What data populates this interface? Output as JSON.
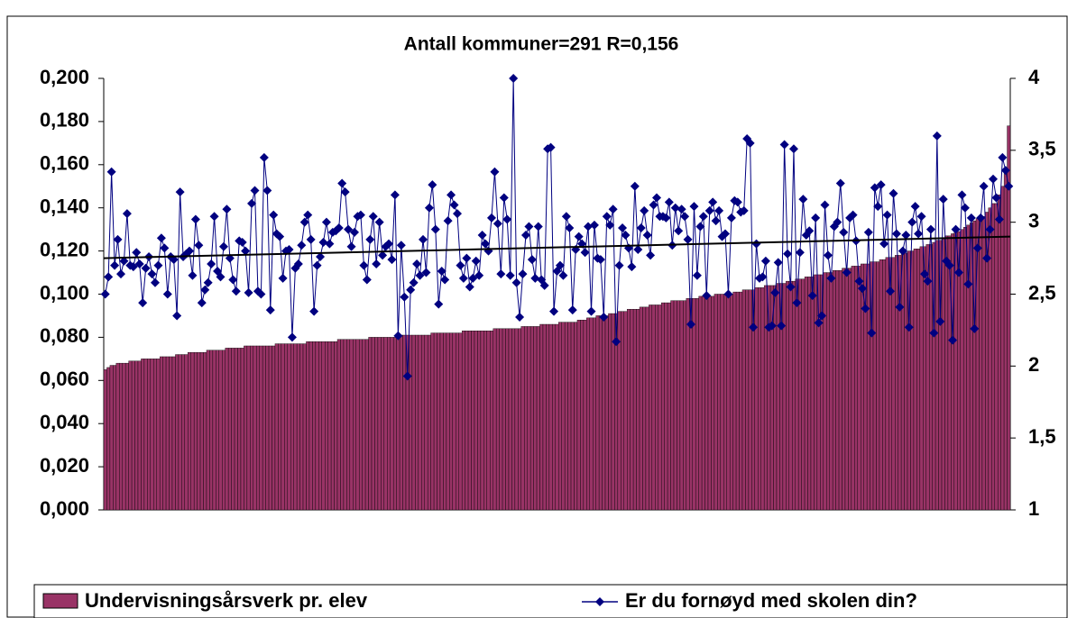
{
  "chart_data": {
    "type": "bar-line",
    "subtitle": "Antall kommuner=291   R=0,156",
    "series": [
      {
        "name": "Undervisningsårsverk pr. elev",
        "color": "#993366",
        "type": "bar",
        "values": [
          0.065,
          0.066,
          0.067,
          0.067,
          0.068,
          0.068,
          0.068,
          0.068,
          0.069,
          0.069,
          0.069,
          0.069,
          0.07,
          0.07,
          0.07,
          0.07,
          0.07,
          0.07,
          0.071,
          0.071,
          0.071,
          0.071,
          0.071,
          0.072,
          0.072,
          0.072,
          0.072,
          0.073,
          0.073,
          0.073,
          0.073,
          0.073,
          0.073,
          0.074,
          0.074,
          0.074,
          0.074,
          0.074,
          0.074,
          0.075,
          0.075,
          0.075,
          0.075,
          0.075,
          0.075,
          0.076,
          0.076,
          0.076,
          0.076,
          0.076,
          0.076,
          0.076,
          0.076,
          0.076,
          0.076,
          0.077,
          0.077,
          0.077,
          0.077,
          0.077,
          0.077,
          0.077,
          0.077,
          0.077,
          0.077,
          0.078,
          0.078,
          0.078,
          0.078,
          0.078,
          0.078,
          0.078,
          0.078,
          0.078,
          0.078,
          0.079,
          0.079,
          0.079,
          0.079,
          0.079,
          0.079,
          0.079,
          0.079,
          0.079,
          0.079,
          0.08,
          0.08,
          0.08,
          0.08,
          0.08,
          0.08,
          0.08,
          0.08,
          0.08,
          0.08,
          0.081,
          0.081,
          0.081,
          0.081,
          0.081,
          0.081,
          0.081,
          0.081,
          0.081,
          0.081,
          0.082,
          0.082,
          0.082,
          0.082,
          0.082,
          0.082,
          0.082,
          0.082,
          0.082,
          0.082,
          0.083,
          0.083,
          0.083,
          0.083,
          0.083,
          0.083,
          0.083,
          0.083,
          0.083,
          0.083,
          0.084,
          0.084,
          0.084,
          0.084,
          0.084,
          0.084,
          0.084,
          0.084,
          0.084,
          0.085,
          0.085,
          0.085,
          0.085,
          0.085,
          0.085,
          0.086,
          0.086,
          0.086,
          0.086,
          0.086,
          0.086,
          0.087,
          0.087,
          0.087,
          0.087,
          0.087,
          0.087,
          0.088,
          0.088,
          0.088,
          0.089,
          0.089,
          0.089,
          0.09,
          0.09,
          0.09,
          0.09,
          0.091,
          0.091,
          0.091,
          0.092,
          0.092,
          0.092,
          0.093,
          0.093,
          0.093,
          0.093,
          0.094,
          0.094,
          0.094,
          0.095,
          0.095,
          0.095,
          0.095,
          0.096,
          0.096,
          0.096,
          0.097,
          0.097,
          0.097,
          0.097,
          0.097,
          0.098,
          0.098,
          0.098,
          0.098,
          0.099,
          0.099,
          0.099,
          0.099,
          0.099,
          0.1,
          0.1,
          0.1,
          0.1,
          0.1,
          0.1,
          0.101,
          0.101,
          0.101,
          0.102,
          0.102,
          0.102,
          0.102,
          0.103,
          0.103,
          0.103,
          0.104,
          0.104,
          0.104,
          0.104,
          0.105,
          0.105,
          0.105,
          0.106,
          0.106,
          0.106,
          0.107,
          0.107,
          0.107,
          0.108,
          0.108,
          0.108,
          0.109,
          0.109,
          0.109,
          0.11,
          0.11,
          0.11,
          0.111,
          0.111,
          0.111,
          0.112,
          0.112,
          0.112,
          0.113,
          0.113,
          0.113,
          0.114,
          0.114,
          0.114,
          0.115,
          0.115,
          0.115,
          0.116,
          0.116,
          0.117,
          0.117,
          0.117,
          0.118,
          0.118,
          0.119,
          0.119,
          0.12,
          0.12,
          0.121,
          0.121,
          0.122,
          0.122,
          0.123,
          0.123,
          0.124,
          0.125,
          0.125,
          0.126,
          0.127,
          0.127,
          0.128,
          0.129,
          0.129,
          0.13,
          0.131,
          0.132,
          0.133,
          0.134,
          0.135,
          0.136,
          0.136,
          0.138,
          0.14,
          0.142,
          0.142,
          0.146,
          0.15,
          0.158,
          0.178
        ]
      },
      {
        "name": "Er du fornøyd med skolen din?",
        "color": "#000080",
        "type": "line",
        "axis": "y2",
        "values": [
          2.5,
          2.62,
          3.35,
          2.7,
          2.88,
          2.64,
          2.73,
          3.06,
          2.7,
          2.69,
          2.79,
          2.71,
          2.44,
          2.68,
          2.76,
          2.64,
          2.58,
          2.7,
          2.89,
          2.82,
          2.5,
          2.76,
          2.74,
          2.35,
          3.21,
          2.76,
          2.78,
          2.8,
          2.63,
          3.02,
          2.84,
          2.44,
          2.53,
          2.58,
          2.71,
          3.04,
          2.66,
          2.62,
          2.83,
          3.09,
          2.75,
          2.6,
          2.52,
          2.87,
          2.86,
          2.8,
          2.51,
          3.13,
          3.22,
          2.52,
          2.5,
          3.45,
          3.22,
          2.39,
          3.05,
          2.92,
          2.9,
          2.61,
          2.8,
          2.81,
          2.2,
          2.68,
          2.71,
          2.84,
          3.0,
          3.05,
          2.88,
          2.38,
          2.7,
          2.76,
          2.86,
          3.0,
          2.85,
          2.93,
          2.94,
          2.96,
          3.27,
          3.21,
          2.95,
          2.83,
          2.93,
          3.04,
          3.05,
          2.7,
          2.6,
          2.88,
          3.04,
          2.71,
          3.0,
          2.77,
          2.83,
          2.85,
          2.74,
          3.19,
          2.21,
          2.84,
          2.48,
          1.93,
          2.53,
          2.58,
          2.71,
          2.63,
          2.88,
          2.65,
          3.1,
          3.26,
          2.95,
          2.43,
          2.66,
          2.6,
          3.01,
          3.19,
          3.12,
          3.06,
          2.7,
          2.61,
          2.75,
          2.55,
          2.61,
          2.73,
          2.63,
          2.91,
          2.85,
          2.8,
          3.03,
          3.35,
          2.99,
          2.64,
          3.17,
          3.02,
          2.63,
          4.0,
          2.58,
          2.34,
          2.64,
          2.91,
          2.97,
          2.74,
          2.61,
          2.97,
          2.6,
          2.56,
          3.51,
          3.52,
          2.38,
          2.66,
          2.7,
          2.63,
          3.04,
          2.96,
          2.39,
          2.81,
          2.9,
          2.85,
          2.79,
          2.97,
          2.38,
          2.98,
          2.75,
          2.74,
          2.34,
          3.04,
          2.98,
          3.09,
          2.17,
          2.7,
          2.96,
          2.91,
          2.82,
          2.69,
          3.25,
          2.81,
          2.96,
          3.08,
          2.91,
          2.77,
          3.12,
          3.17,
          3.04,
          3.04,
          3.03,
          3.14,
          2.84,
          3.1,
          2.94,
          3.09,
          3.04,
          2.88,
          2.29,
          3.11,
          2.63,
          2.97,
          3.04,
          2.49,
          3.08,
          3.14,
          3.01,
          3.08,
          2.9,
          2.92,
          2.5,
          3.03,
          3.15,
          3.14,
          3.07,
          3.08,
          3.58,
          3.55,
          2.27,
          2.85,
          2.61,
          2.62,
          2.73,
          2.27,
          2.28,
          2.51,
          2.72,
          2.28,
          3.54,
          2.78,
          2.55,
          3.51,
          2.44,
          2.79,
          3.16,
          2.91,
          2.94,
          2.49,
          3.03,
          2.3,
          2.35,
          3.12,
          2.77,
          2.61,
          2.97,
          3.0,
          3.27,
          2.93,
          2.65,
          3.03,
          3.05,
          2.87,
          2.59,
          2.54,
          2.4,
          2.93,
          2.23,
          3.24,
          3.11,
          3.26,
          2.85,
          3.05,
          2.52,
          3.2,
          2.92,
          2.41,
          2.8,
          2.91,
          2.27,
          3.0,
          3.11,
          2.92,
          3.04,
          2.64,
          2.59,
          2.95,
          2.23,
          3.6,
          2.31,
          3.16,
          2.73,
          2.7,
          2.18,
          2.95,
          2.65,
          3.19,
          3.1,
          2.57,
          3.03,
          2.26,
          2.82,
          3.03,
          3.25,
          2.75,
          2.95,
          3.3,
          3.17,
          3.02,
          3.45,
          3.36,
          3.25
        ]
      }
    ],
    "trendline": {
      "axis": "y2",
      "color": "#000000",
      "values": [
        2.75,
        2.9
      ]
    },
    "ylim": [
      0,
      0.2
    ],
    "yticks": [
      {
        "value": 0,
        "label": "0,000"
      },
      {
        "value": 0.02,
        "label": "0,020"
      },
      {
        "value": 0.04,
        "label": "0,040"
      },
      {
        "value": 0.06,
        "label": "0,060"
      },
      {
        "value": 0.08,
        "label": "0,080"
      },
      {
        "value": 0.1,
        "label": "0,100"
      },
      {
        "value": 0.12,
        "label": "0,120"
      },
      {
        "value": 0.14,
        "label": "0,140"
      },
      {
        "value": 0.16,
        "label": "0,160"
      },
      {
        "value": 0.18,
        "label": "0,180"
      },
      {
        "value": 0.2,
        "label": "0,200"
      }
    ],
    "y2lim": [
      1,
      4
    ],
    "y2ticks": [
      1,
      {
        "value": 1.5,
        "label": "1,5"
      },
      2,
      {
        "value": 2.5,
        "label": "2,5"
      },
      3,
      {
        "value": 3.5,
        "label": "3,5"
      },
      4
    ],
    "legend": "bottom"
  }
}
